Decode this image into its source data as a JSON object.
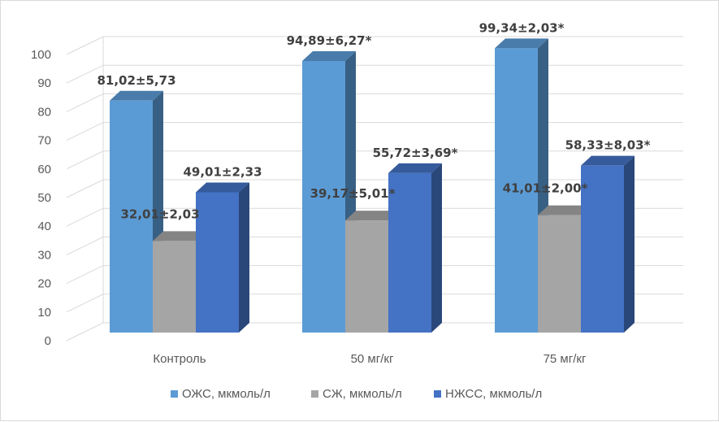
{
  "chart_data": {
    "type": "bar",
    "variant": "3d-clustered-column",
    "title": "",
    "xlabel": "",
    "ylabel": "",
    "ylim": [
      0,
      100
    ],
    "yticks": [
      0,
      10,
      20,
      30,
      40,
      50,
      60,
      70,
      80,
      90,
      100
    ],
    "grid": true,
    "legend_position": "bottom",
    "categories": [
      "Контроль",
      "50 мг/кг",
      "75 мг/кг"
    ],
    "series": [
      {
        "name": "ОЖС, мкмоль/л",
        "color": "#5b9bd5",
        "values": [
          81.02,
          94.89,
          99.34
        ],
        "labels": [
          "81,02±5,73",
          "94,89±6,27*",
          "99,34±2,03*"
        ]
      },
      {
        "name": "СЖ, мкмоль/л",
        "color": "#a5a5a5",
        "values": [
          32.01,
          39.17,
          41.01
        ],
        "labels": [
          "32,01±2,03",
          "39,17±5,01*",
          "41,01±2,00*"
        ]
      },
      {
        "name": "НЖСС, мкмоль/л",
        "color": "#4472c4",
        "values": [
          49.01,
          55.72,
          58.33
        ],
        "labels": [
          "49,01±2,33",
          "55,72±3,69*",
          "58,33±8,03*"
        ]
      }
    ]
  }
}
